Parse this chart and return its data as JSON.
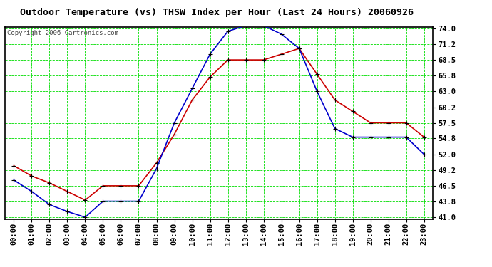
{
  "title": "Outdoor Temperature (vs) THSW Index per Hour (Last 24 Hours) 20060926",
  "copyright": "Copyright 2006 Cartronics.com",
  "hours": [
    "00:00",
    "01:00",
    "02:00",
    "03:00",
    "04:00",
    "05:00",
    "06:00",
    "07:00",
    "08:00",
    "09:00",
    "10:00",
    "11:00",
    "12:00",
    "13:00",
    "14:00",
    "15:00",
    "16:00",
    "17:00",
    "18:00",
    "19:00",
    "20:00",
    "21:00",
    "22:00",
    "23:00"
  ],
  "temp_red": [
    50.0,
    48.2,
    47.0,
    45.5,
    44.0,
    46.5,
    46.5,
    46.5,
    50.5,
    55.5,
    61.5,
    65.5,
    68.5,
    68.5,
    68.5,
    69.5,
    70.5,
    66.0,
    61.5,
    59.5,
    57.5,
    57.5,
    57.5,
    55.0
  ],
  "thsw_blue": [
    47.5,
    45.5,
    43.2,
    42.0,
    41.0,
    43.8,
    43.8,
    43.8,
    49.5,
    57.5,
    63.5,
    69.5,
    73.5,
    74.5,
    74.5,
    73.0,
    70.5,
    63.0,
    56.5,
    55.0,
    55.0,
    55.0,
    55.0,
    52.0
  ],
  "ylim_min": 41.0,
  "ylim_max": 74.0,
  "ytick_vals": [
    41.0,
    43.8,
    46.5,
    49.2,
    52.0,
    54.8,
    57.5,
    60.2,
    63.0,
    65.8,
    68.5,
    71.2,
    74.0
  ],
  "ytick_labels": [
    "41.0",
    "43.8",
    "46.5",
    "49.2",
    "52.0",
    "54.8",
    "57.5",
    "60.2",
    "63.0",
    "65.8",
    "68.5",
    "71.2",
    "74.0"
  ],
  "bg_color": "#ffffff",
  "grid_color": "#00dd00",
  "line_color_red": "#cc0000",
  "line_color_blue": "#0000cc",
  "title_color": "#000000",
  "border_color": "#000000",
  "title_fontsize": 9.5,
  "copyright_fontsize": 6.5,
  "tick_fontsize": 7.5,
  "figwidth": 6.9,
  "figheight": 3.75,
  "dpi": 100
}
